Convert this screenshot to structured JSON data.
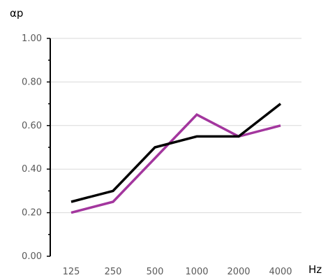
{
  "chart_data": {
    "type": "line",
    "title": "",
    "xlabel": "Hz",
    "ylabel": "αp",
    "categories": [
      "125",
      "250",
      "500",
      "1000",
      "2000",
      "4000"
    ],
    "ylim": [
      0,
      1.0
    ],
    "yticks": [
      "0.00",
      "0.20",
      "0.40",
      "0.60",
      "0.80",
      "1.00"
    ],
    "grid": true,
    "legend": "none",
    "series": [
      {
        "color": "#a3369e",
        "values": [
          0.2,
          0.25,
          0.45,
          0.65,
          0.55,
          0.6
        ]
      },
      {
        "color": "#000000",
        "values": [
          0.25,
          0.3,
          0.5,
          0.55,
          0.55,
          0.7
        ]
      }
    ]
  }
}
